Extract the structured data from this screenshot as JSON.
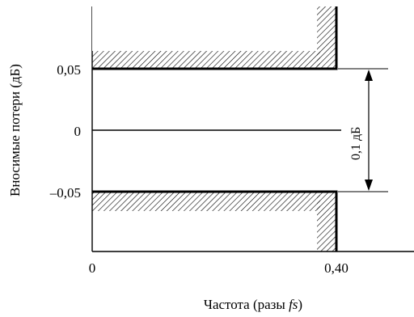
{
  "diagram": {
    "y_axis_label": "Вносимые потери (дБ)",
    "x_axis_label_prefix": "Частота (разы ",
    "x_axis_label_italic": "fs",
    "x_axis_label_suffix": ")",
    "y_ticks": [
      "0,05",
      "0",
      "–0,05"
    ],
    "x_ticks": [
      "0",
      "0,40"
    ],
    "span_label": "0,1 дБ",
    "colors": {
      "line": "#000000",
      "background": "#ffffff"
    }
  }
}
